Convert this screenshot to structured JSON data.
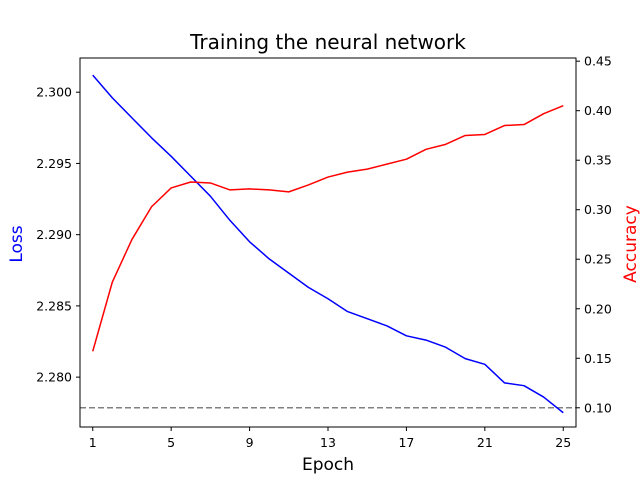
{
  "chart_data": {
    "type": "line",
    "title": "Training the neural network",
    "xlabel": "Epoch",
    "ylabel_left": "Loss",
    "ylabel_right": "Accuracy",
    "xlim": [
      0.35,
      25.65
    ],
    "xticks": [
      1,
      5,
      9,
      13,
      17,
      21,
      25
    ],
    "ylim_left": [
      2.2765,
      2.3024
    ],
    "yticks_left": [
      2.28,
      2.285,
      2.29,
      2.295,
      2.3
    ],
    "ylim_right": [
      0.0806,
      0.4532
    ],
    "yticks_right": [
      0.1,
      0.15,
      0.2,
      0.25,
      0.3,
      0.35,
      0.4,
      0.45
    ],
    "grid": false,
    "colors": {
      "loss": "#0000ff",
      "accuracy": "#ff0000",
      "reference": "#808080"
    },
    "x": [
      1,
      2,
      3,
      4,
      5,
      6,
      7,
      8,
      9,
      10,
      11,
      12,
      13,
      14,
      15,
      16,
      17,
      18,
      19,
      20,
      21,
      22,
      23,
      24,
      25
    ],
    "series": [
      {
        "key": "loss",
        "axis": "left",
        "values": [
          2.3012,
          2.2996,
          2.2982,
          2.2968,
          2.2955,
          2.2941,
          2.2927,
          2.291,
          2.2895,
          2.2883,
          2.2873,
          2.2863,
          2.2855,
          2.2846,
          2.2841,
          2.2836,
          2.2829,
          2.2826,
          2.2821,
          2.2813,
          2.2809,
          2.2796,
          2.2794,
          2.2786,
          2.2775
        ]
      },
      {
        "key": "accuracy",
        "axis": "right",
        "values": [
          0.157,
          0.227,
          0.27,
          0.303,
          0.322,
          0.328,
          0.327,
          0.32,
          0.321,
          0.32,
          0.318,
          0.325,
          0.333,
          0.338,
          0.341,
          0.346,
          0.351,
          0.361,
          0.366,
          0.375,
          0.376,
          0.385,
          0.386,
          0.397,
          0.405
        ]
      }
    ],
    "reference_line": {
      "axis": "right",
      "y": 0.1,
      "style": "dashed"
    }
  }
}
